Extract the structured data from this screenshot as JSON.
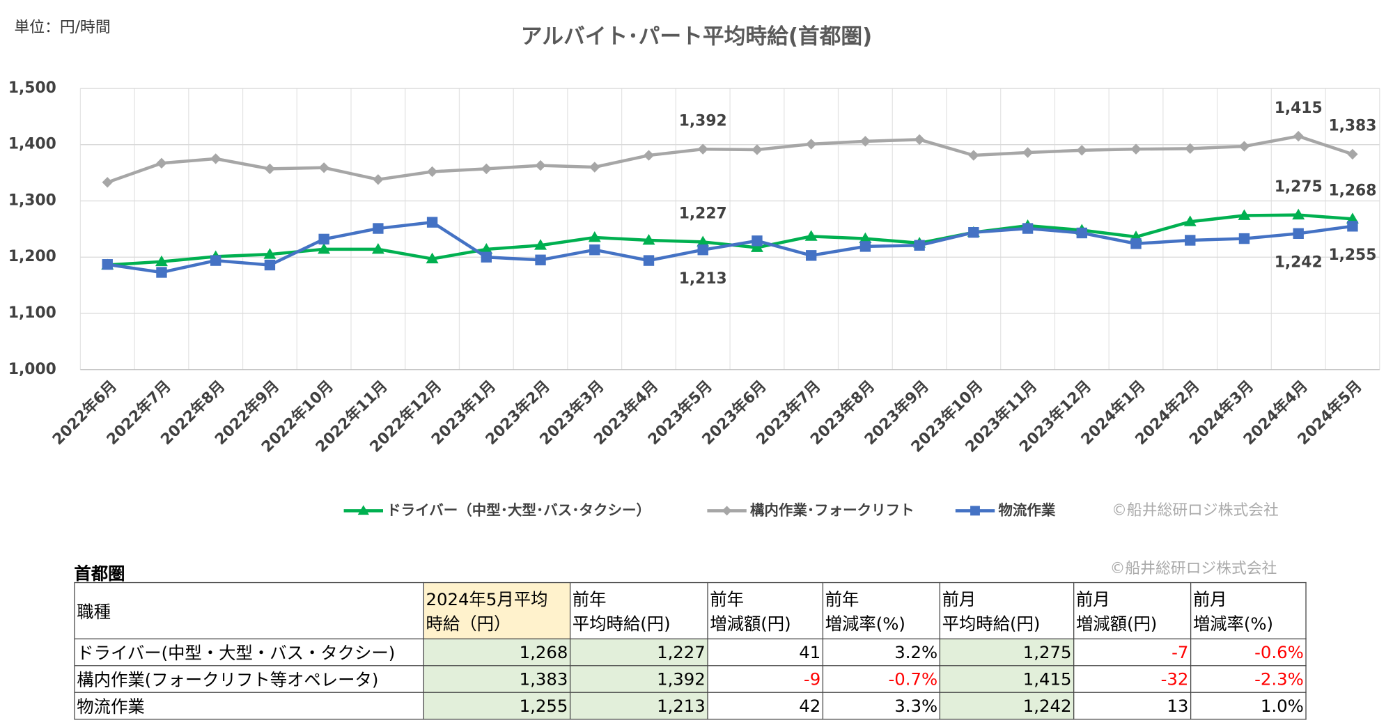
{
  "unit_note": "単位：円/時間",
  "chart_data": {
    "type": "line",
    "title": "アルバイト･パート平均時給(首都圏)",
    "categories": [
      "2022年6月",
      "2022年7月",
      "2022年8月",
      "2022年9月",
      "2022年10月",
      "2022年11月",
      "2022年12月",
      "2023年1月",
      "2023年2月",
      "2023年3月",
      "2023年4月",
      "2023年5月",
      "2023年6月",
      "2023年7月",
      "2023年8月",
      "2023年9月",
      "2023年10月",
      "2023年11月",
      "2023年12月",
      "2024年1月",
      "2024年2月",
      "2024年3月",
      "2024年4月",
      "2024年5月"
    ],
    "series": [
      {
        "name": "ドライバー（中型･大型･バス･タクシー）",
        "color": "#00b050",
        "marker": "triangle",
        "label_position": "above",
        "values": [
          1186,
          1192,
          1201,
          1205,
          1214,
          1214,
          1197,
          1214,
          1221,
          1235,
          1230,
          1227,
          1217,
          1237,
          1233,
          1225,
          1244,
          1256,
          1248,
          1236,
          1263,
          1274,
          1275,
          1268
        ],
        "value_labels": [
          null,
          null,
          null,
          null,
          null,
          null,
          null,
          null,
          null,
          null,
          null,
          "1,227",
          null,
          null,
          null,
          null,
          null,
          null,
          null,
          null,
          null,
          null,
          "1,275",
          "1,268"
        ]
      },
      {
        "name": "構内作業･フォークリフト",
        "color": "#a6a6a6",
        "marker": "diamond",
        "label_position": "above",
        "values": [
          1333,
          1367,
          1375,
          1357,
          1359,
          1338,
          1352,
          1357,
          1363,
          1360,
          1381,
          1392,
          1391,
          1401,
          1406,
          1409,
          1381,
          1386,
          1390,
          1392,
          1393,
          1397,
          1415,
          1383
        ],
        "value_labels": [
          null,
          null,
          null,
          null,
          null,
          null,
          null,
          null,
          null,
          null,
          null,
          "1,392",
          null,
          null,
          null,
          null,
          null,
          null,
          null,
          null,
          null,
          null,
          "1,415",
          "1,383"
        ]
      },
      {
        "name": "物流作業",
        "color": "#4472c4",
        "marker": "square",
        "label_position": "below",
        "values": [
          1187,
          1173,
          1194,
          1186,
          1232,
          1251,
          1262,
          1200,
          1195,
          1213,
          1194,
          1213,
          1229,
          1203,
          1219,
          1221,
          1244,
          1251,
          1243,
          1224,
          1230,
          1233,
          1242,
          1255
        ],
        "value_labels": [
          null,
          null,
          null,
          null,
          null,
          null,
          null,
          null,
          null,
          null,
          null,
          "1,213",
          null,
          null,
          null,
          null,
          null,
          null,
          null,
          null,
          null,
          null,
          "1,242",
          "1,255"
        ]
      }
    ],
    "ylim": [
      1000,
      1500
    ],
    "yticks": [
      {
        "value": 1000,
        "label": "1,000"
      },
      {
        "value": 1100,
        "label": "1,100"
      },
      {
        "value": 1200,
        "label": "1,200"
      },
      {
        "value": 1300,
        "label": "1,300"
      },
      {
        "value": 1400,
        "label": "1,400"
      },
      {
        "value": 1500,
        "label": "1,500"
      }
    ],
    "grid": true,
    "legend": "bottom",
    "credit": "©船井総研ロジ株式会社"
  },
  "table": {
    "title": "首都圏",
    "credit": "©船井総研ロジ株式会社",
    "header": [
      "職種",
      "2024年5月平均\n時給（円）",
      "前年\n平均時給(円)",
      "前年\n増減額(円)",
      "前年\n増減率(%)",
      "前月\n平均時給(円)",
      "前月\n増減額(円)",
      "前月\n増減率(%)"
    ],
    "rows": [
      [
        "ドライバー(中型・大型・バス・タクシー)",
        "1,268",
        "1,227",
        "41",
        "3.2%",
        "1,275",
        "-7",
        "-0.6%"
      ],
      [
        "構内作業(フォークリフト等オペレータ)",
        "1,383",
        "1,392",
        "-9",
        "-0.7%",
        "1,415",
        "-32",
        "-2.3%"
      ],
      [
        "物流作業",
        "1,255",
        "1,213",
        "42",
        "3.3%",
        "1,242",
        "13",
        "1.0%"
      ]
    ]
  }
}
